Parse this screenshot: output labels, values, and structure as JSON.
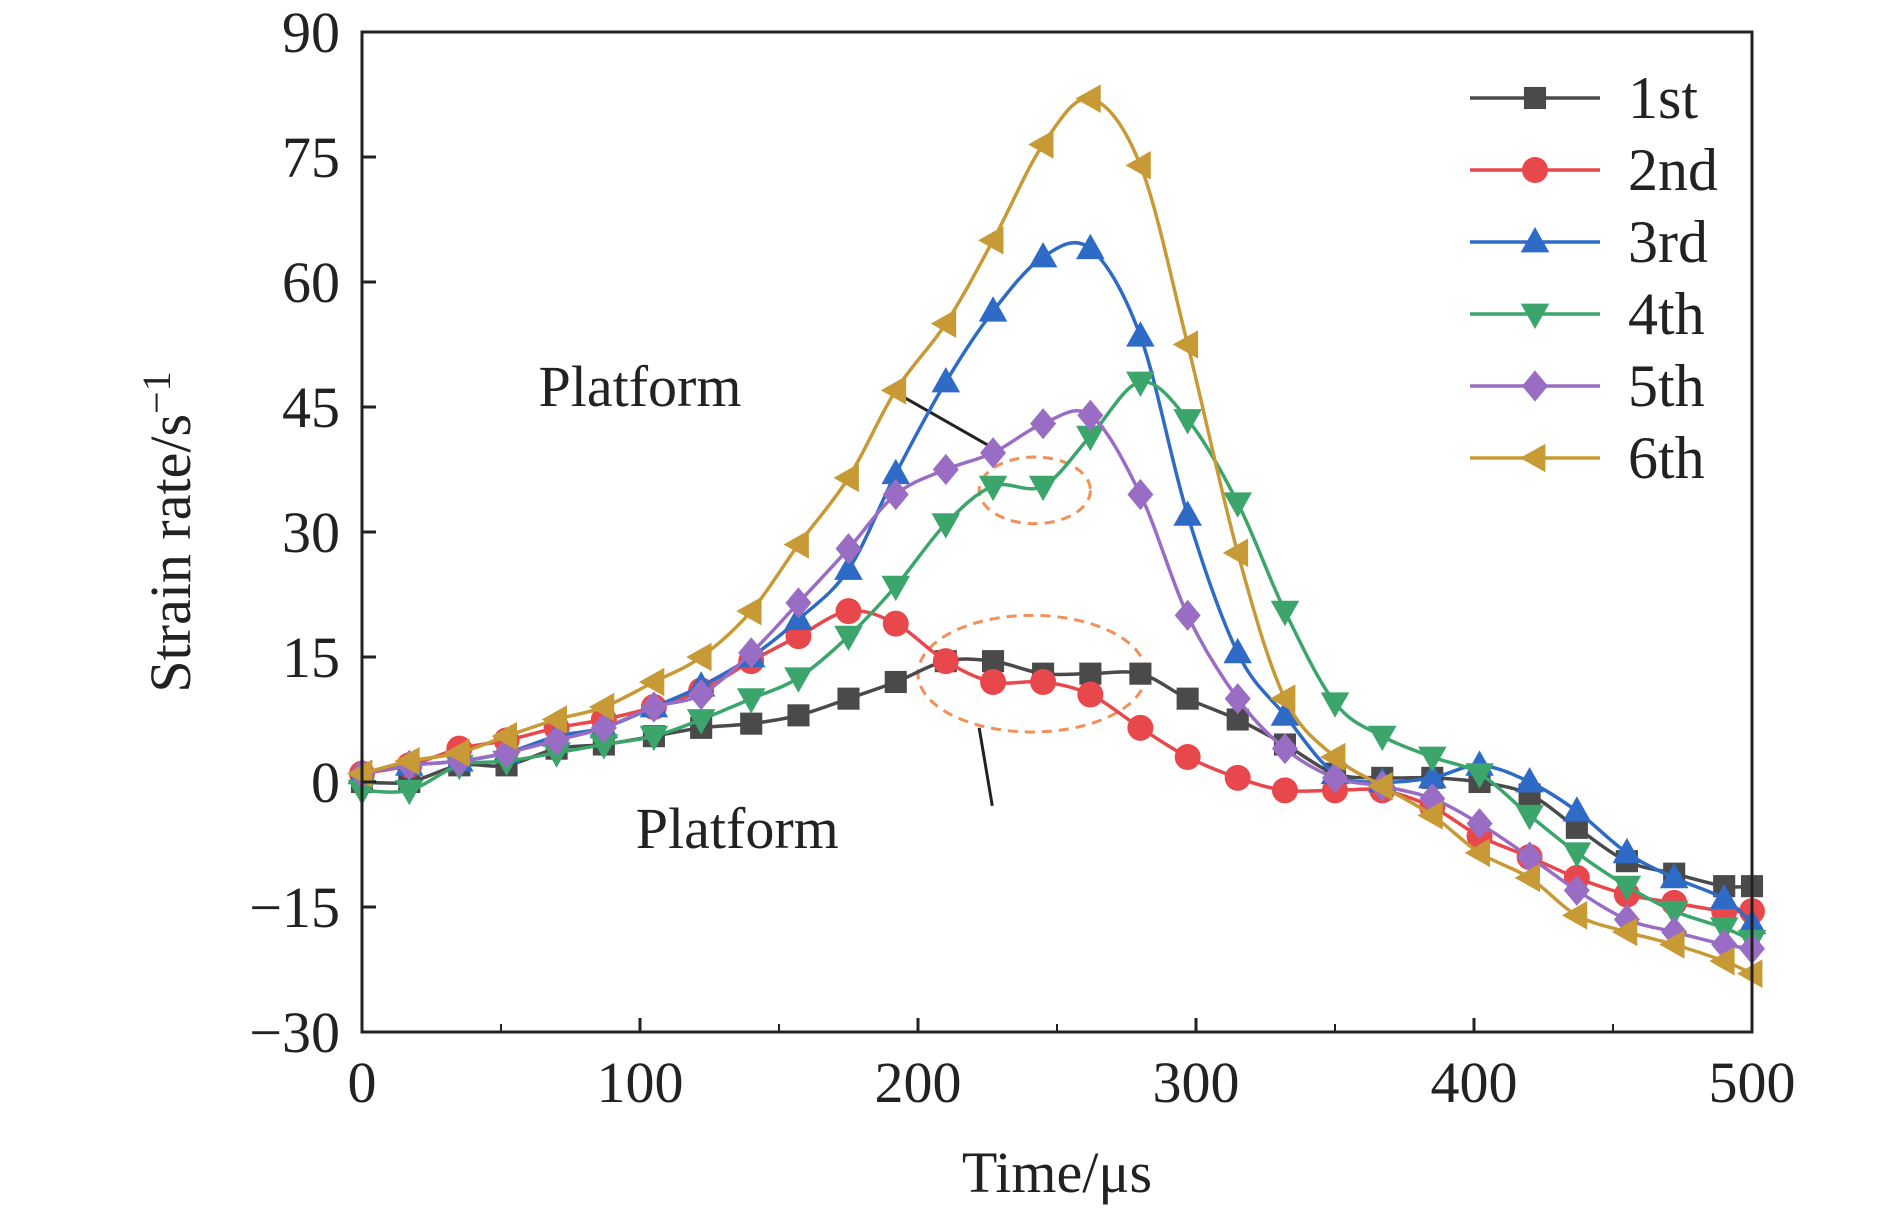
{
  "chart_data": {
    "type": "line",
    "xlabel": "Time/μs",
    "ylabel": "Strain rate/s",
    "ylabel_sup": "−1",
    "xlim": [
      0,
      500
    ],
    "ylim": [
      -30,
      90
    ],
    "xticks": [
      0,
      100,
      200,
      300,
      400,
      500
    ],
    "xtick_labels": [
      "0",
      "100",
      "200",
      "300",
      "400",
      "500"
    ],
    "yticks": [
      -30,
      -15,
      0,
      15,
      30,
      45,
      60,
      75,
      90
    ],
    "ytick_labels": [
      "−30",
      "−15",
      "0",
      "15",
      "30",
      "45",
      "60",
      "75",
      "90"
    ],
    "grid": false,
    "legend_position": "top-right",
    "series": [
      {
        "name": "1st",
        "color": "#4a4a4a",
        "marker": "square",
        "x": [
          0,
          17,
          35,
          52,
          70,
          87,
          105,
          122,
          140,
          157,
          175,
          192,
          210,
          227,
          245,
          262,
          280,
          297,
          315,
          332,
          350,
          367,
          385,
          402,
          420,
          437,
          455,
          472,
          490,
          500
        ],
        "y": [
          0,
          0,
          2,
          2,
          4,
          4.5,
          5.5,
          6.5,
          7,
          8,
          10,
          12,
          14.5,
          14.5,
          13,
          13,
          13,
          10,
          7.5,
          4.5,
          1,
          0.5,
          0.5,
          0,
          -1.5,
          -5.5,
          -9.5,
          -11,
          -12.5,
          -12.5
        ]
      },
      {
        "name": "2nd",
        "color": "#e8474b",
        "marker": "circle",
        "x": [
          0,
          17,
          35,
          52,
          70,
          87,
          105,
          122,
          140,
          157,
          175,
          192,
          210,
          227,
          245,
          262,
          280,
          297,
          315,
          332,
          350,
          367,
          385,
          402,
          420,
          437,
          455,
          472,
          490,
          500
        ],
        "y": [
          1,
          2,
          4,
          5,
          6.5,
          7.5,
          9,
          11,
          14.5,
          17.5,
          20.5,
          19,
          14.5,
          12,
          12,
          10.5,
          6.5,
          3,
          0.5,
          -1,
          -1,
          -1,
          -3,
          -6.5,
          -9,
          -11.5,
          -13.5,
          -14.5,
          -15.5,
          -15.5
        ]
      },
      {
        "name": "3rd",
        "color": "#2e6bc6",
        "marker": "triangle-up",
        "x": [
          0,
          17,
          35,
          52,
          70,
          87,
          105,
          122,
          140,
          157,
          175,
          192,
          210,
          227,
          245,
          262,
          280,
          297,
          315,
          332,
          350,
          367,
          385,
          402,
          420,
          437,
          455,
          472,
          490,
          500
        ],
        "y": [
          1,
          2,
          2.5,
          3.5,
          5.5,
          6.5,
          9,
          11.5,
          15,
          19.5,
          25.5,
          37,
          48,
          56.5,
          63,
          64,
          53.5,
          32,
          15.5,
          8,
          1,
          0,
          0.5,
          2,
          0,
          -3.5,
          -8.5,
          -11.5,
          -14,
          -17
        ]
      },
      {
        "name": "4th",
        "color": "#3ca56c",
        "marker": "triangle-down",
        "x": [
          0,
          17,
          35,
          52,
          70,
          87,
          105,
          122,
          140,
          157,
          175,
          192,
          210,
          227,
          245,
          262,
          280,
          297,
          315,
          332,
          350,
          367,
          385,
          402,
          420,
          437,
          455,
          472,
          490,
          500
        ],
        "y": [
          -1,
          -1,
          2,
          2.5,
          3.5,
          4.5,
          5.5,
          7.5,
          10,
          12.5,
          17.5,
          23.5,
          31,
          35.5,
          35.5,
          41.5,
          48,
          43.5,
          33.5,
          20.5,
          9.5,
          5.5,
          3,
          1,
          -4,
          -8.5,
          -12.5,
          -15.5,
          -17.5,
          -19
        ]
      },
      {
        "name": "5th",
        "color": "#9a6dc4",
        "marker": "diamond",
        "x": [
          0,
          17,
          35,
          52,
          70,
          87,
          105,
          122,
          140,
          157,
          175,
          192,
          210,
          227,
          245,
          262,
          280,
          297,
          315,
          332,
          350,
          367,
          385,
          402,
          420,
          437,
          455,
          472,
          490,
          500
        ],
        "y": [
          1,
          2,
          2.5,
          3.5,
          5,
          6.5,
          9,
          10.5,
          15.5,
          21.5,
          28,
          34.5,
          37.5,
          39.5,
          43,
          44,
          34.5,
          20,
          10,
          4,
          0.5,
          -0.5,
          -2,
          -5,
          -9,
          -13,
          -16.5,
          -18,
          -19.5,
          -20
        ]
      },
      {
        "name": "6th",
        "color": "#c79a35",
        "marker": "triangle-left",
        "x": [
          0,
          17,
          35,
          52,
          70,
          87,
          105,
          122,
          140,
          157,
          175,
          192,
          210,
          227,
          245,
          262,
          280,
          297,
          315,
          332,
          350,
          367,
          385,
          402,
          420,
          437,
          455,
          472,
          490,
          500
        ],
        "y": [
          1,
          2.5,
          3.5,
          5.5,
          7.5,
          9,
          12,
          15,
          20.5,
          28.5,
          36.5,
          47,
          55,
          65,
          76.5,
          82,
          74,
          52.5,
          27.5,
          10,
          3,
          -0.5,
          -4,
          -8.5,
          -11.5,
          -16,
          -18,
          -19.5,
          -21.5,
          -23
        ]
      }
    ],
    "annotations": [
      {
        "label": "Platform",
        "text_at": [
          100,
          47.5
        ],
        "arrow_to": [
          230,
          39.5
        ],
        "ellipse_center": [
          242,
          35
        ],
        "ellipse_radius": [
          20,
          4
        ]
      },
      {
        "label": "Platform",
        "text_at": [
          135,
          -5.5
        ],
        "arrow_to": [
          222,
          6.5
        ],
        "ellipse_center": [
          241,
          13
        ],
        "ellipse_radius": [
          41,
          7
        ]
      }
    ]
  }
}
